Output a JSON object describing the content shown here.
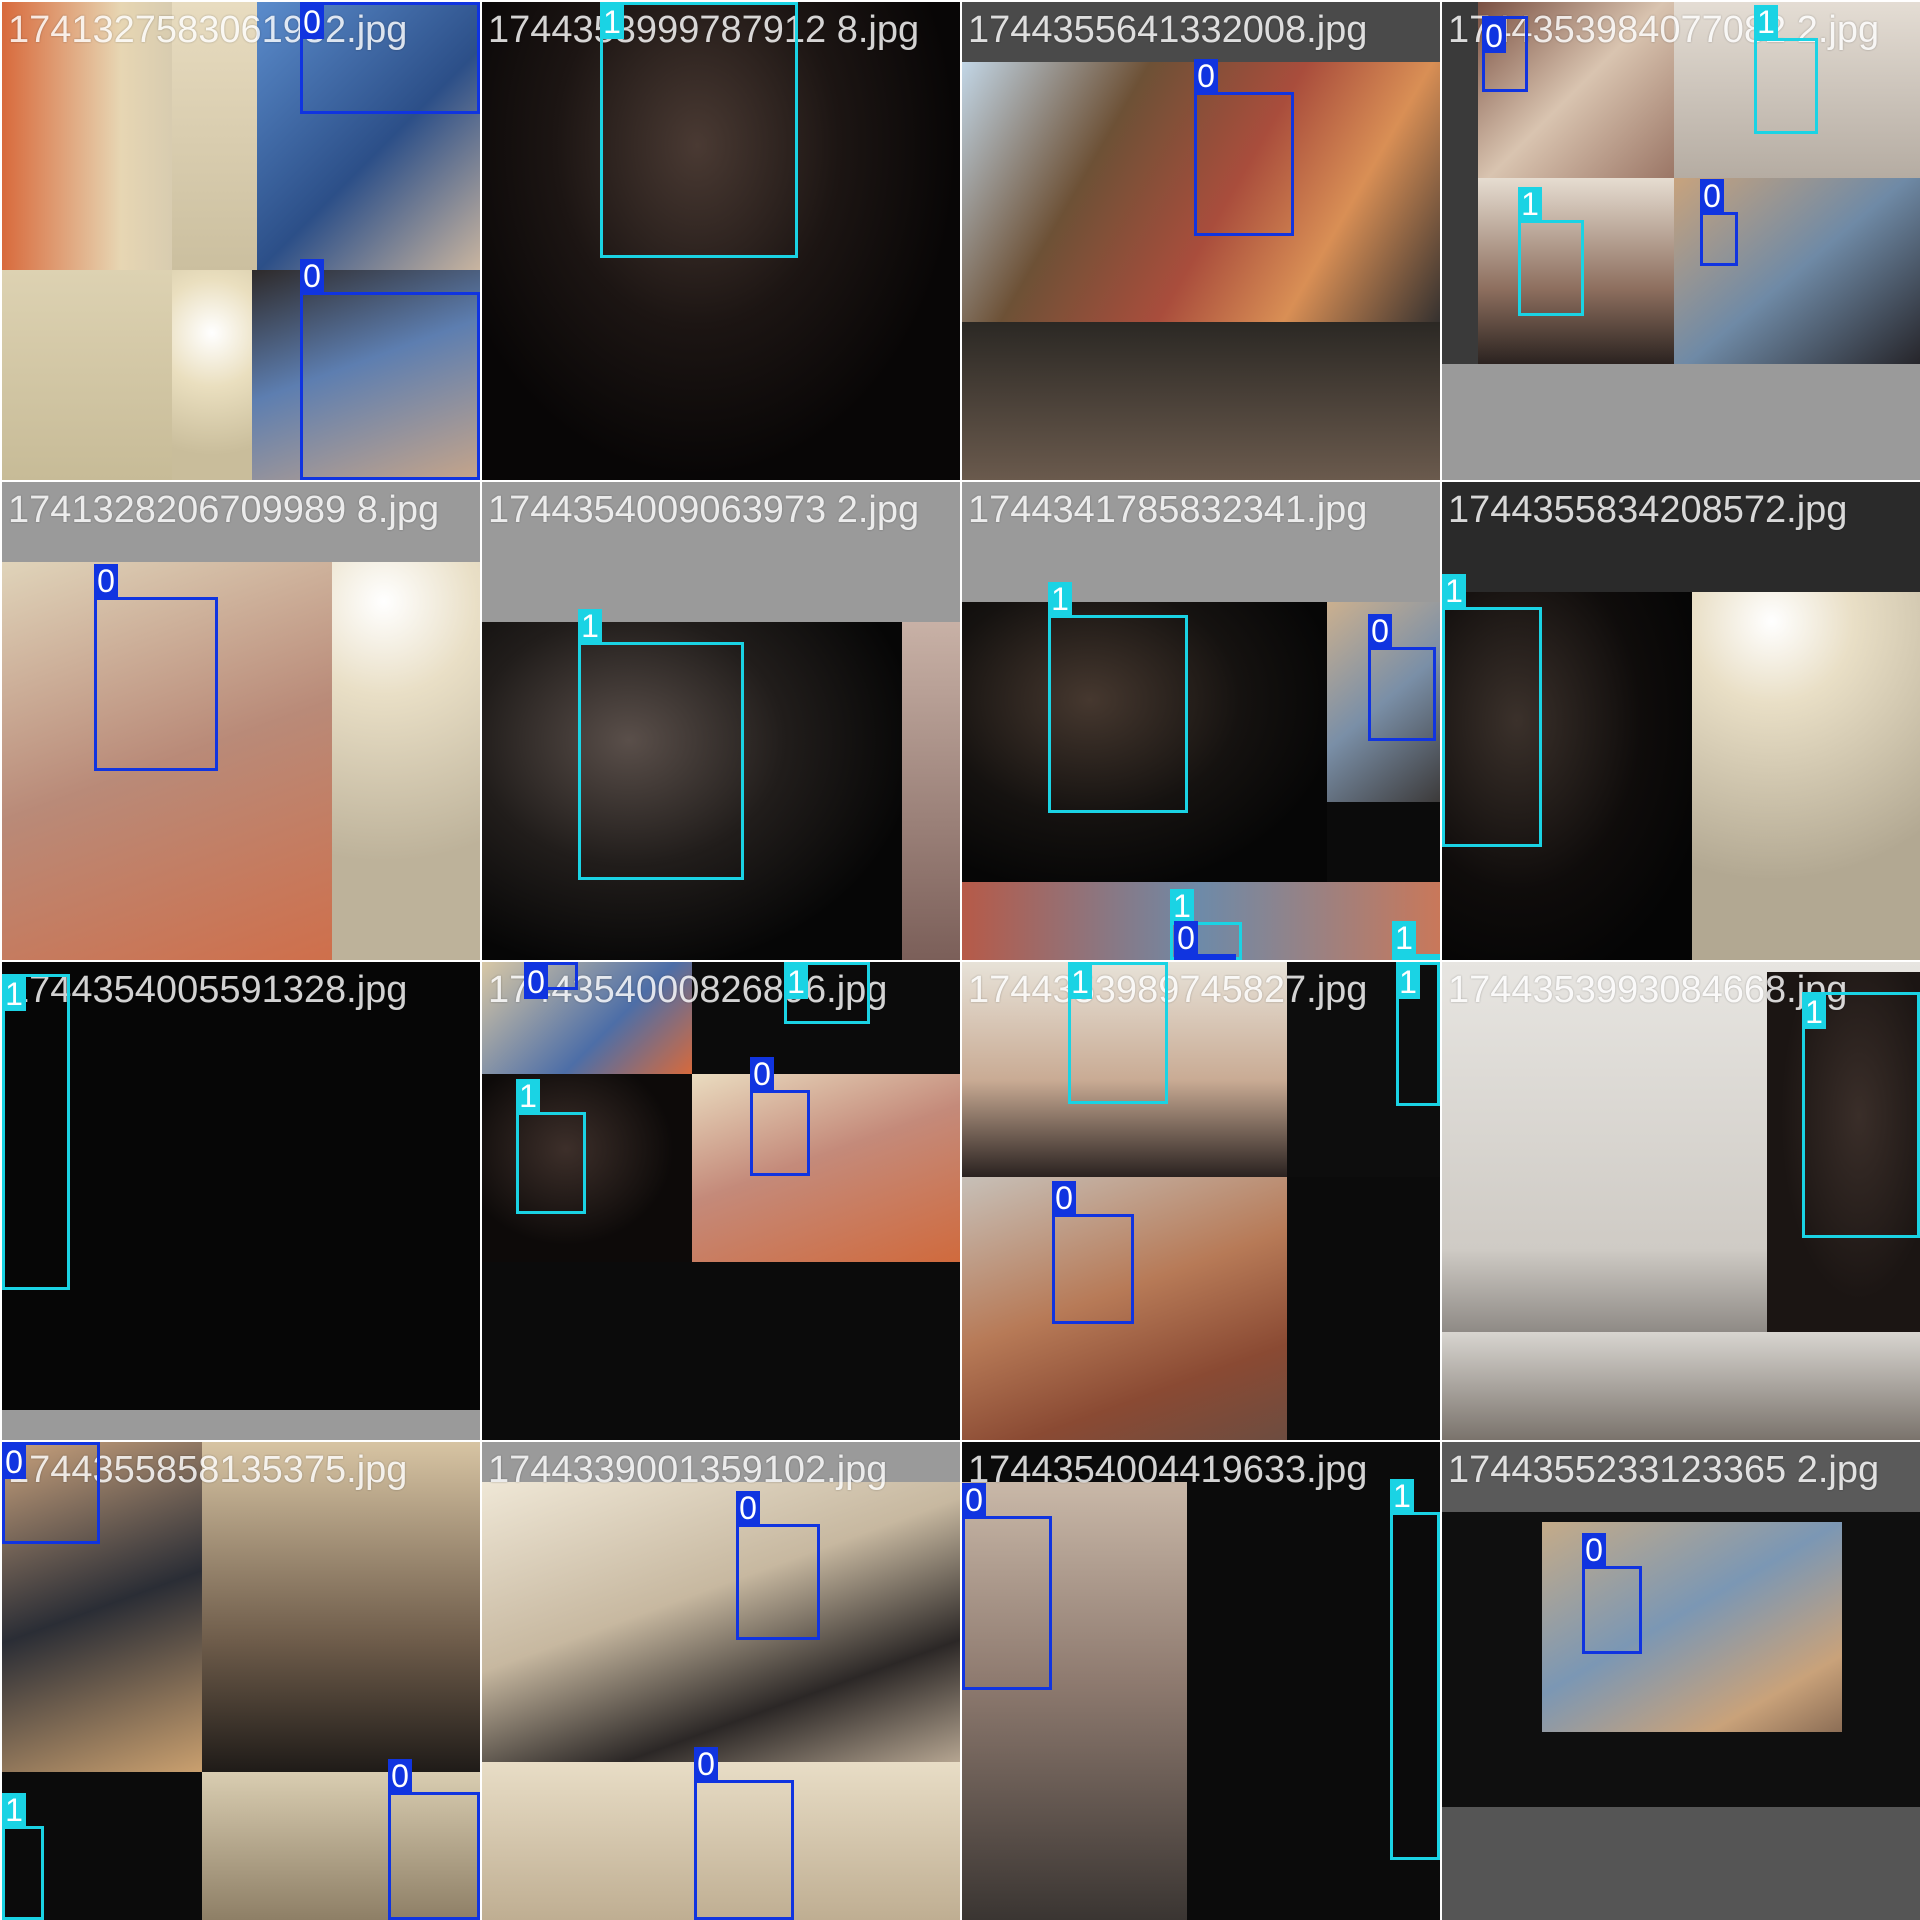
{
  "classes": {
    "0": {
      "color": "#1034e0"
    },
    "1": {
      "color": "#1ad3e4"
    }
  },
  "tiles": [
    {
      "id": 0,
      "filename": "1741327583061932.jpg",
      "boxes": [
        {
          "cls": "0",
          "label": "0"
        },
        {
          "cls": "0",
          "label": "0"
        }
      ]
    },
    {
      "id": 1,
      "filename": "1744353999787912 8.jpg",
      "boxes": [
        {
          "cls": "1",
          "label": "1"
        }
      ]
    },
    {
      "id": 2,
      "filename": "1744355641332008.jpg",
      "boxes": [
        {
          "cls": "0",
          "label": "0"
        }
      ]
    },
    {
      "id": 3,
      "filename": "1744353984077082 2.jpg",
      "boxes": [
        {
          "cls": "0",
          "label": "0"
        },
        {
          "cls": "1",
          "label": "1"
        },
        {
          "cls": "1",
          "label": "1"
        },
        {
          "cls": "0",
          "label": "0"
        }
      ]
    },
    {
      "id": 4,
      "filename": "1741328206709989 8.jpg",
      "boxes": [
        {
          "cls": "0",
          "label": "0"
        }
      ]
    },
    {
      "id": 5,
      "filename": "1744354009063973 2.jpg",
      "boxes": [
        {
          "cls": "1",
          "label": "1"
        }
      ]
    },
    {
      "id": 6,
      "filename": "1744341785832341.jpg",
      "boxes": [
        {
          "cls": "1",
          "label": "1"
        },
        {
          "cls": "0",
          "label": "0"
        },
        {
          "cls": "1",
          "label": "1"
        },
        {
          "cls": "0",
          "label": "0"
        },
        {
          "cls": "1",
          "label": "1"
        }
      ]
    },
    {
      "id": 7,
      "filename": "1744355834208572.jpg",
      "boxes": [
        {
          "cls": "1",
          "label": "1"
        }
      ]
    },
    {
      "id": 8,
      "filename": "1744354005591328.jpg",
      "boxes": [
        {
          "cls": "1",
          "label": "1"
        }
      ]
    },
    {
      "id": 9,
      "filename": "1744354000826896.jpg",
      "boxes": [
        {
          "cls": "0",
          "label": "0"
        },
        {
          "cls": "1",
          "label": "1"
        },
        {
          "cls": "1",
          "label": "1"
        },
        {
          "cls": "0",
          "label": "0"
        }
      ]
    },
    {
      "id": 10,
      "filename": "1744353989745827.jpg",
      "boxes": [
        {
          "cls": "1",
          "label": "1"
        },
        {
          "cls": "1",
          "label": "1"
        },
        {
          "cls": "0",
          "label": "0"
        }
      ]
    },
    {
      "id": 11,
      "filename": "1744353993084668.jpg",
      "boxes": [
        {
          "cls": "1",
          "label": "1"
        }
      ]
    },
    {
      "id": 12,
      "filename": "1744355858135375.jpg",
      "boxes": [
        {
          "cls": "0",
          "label": "0"
        },
        {
          "cls": "0",
          "label": "0"
        },
        {
          "cls": "1",
          "label": "1"
        }
      ]
    },
    {
      "id": 13,
      "filename": "1744339001359102.jpg",
      "boxes": [
        {
          "cls": "0",
          "label": "0"
        },
        {
          "cls": "0",
          "label": "0"
        }
      ]
    },
    {
      "id": 14,
      "filename": "1744354004419633.jpg",
      "boxes": [
        {
          "cls": "0",
          "label": "0"
        },
        {
          "cls": "1",
          "label": "1"
        }
      ]
    },
    {
      "id": 15,
      "filename": "1744355233123365 2.jpg",
      "boxes": [
        {
          "cls": "0",
          "label": "0"
        }
      ]
    }
  ]
}
